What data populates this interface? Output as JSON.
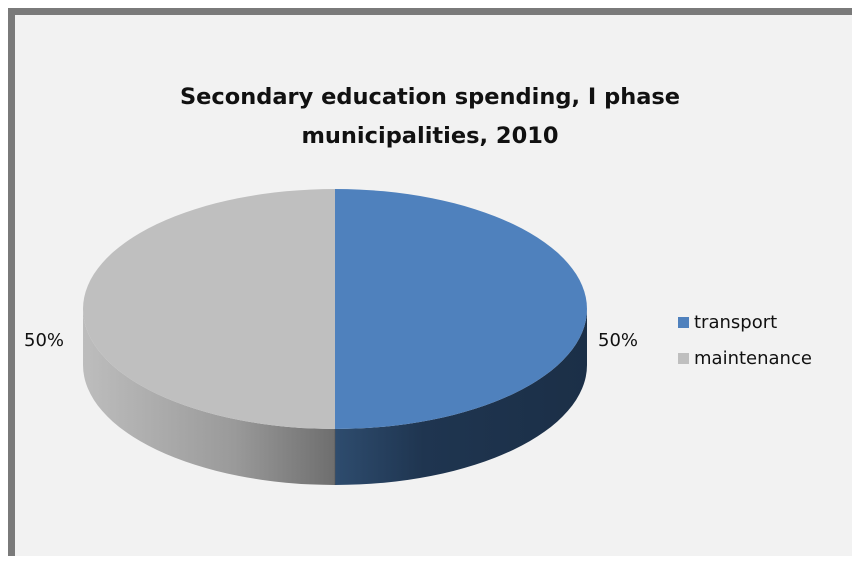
{
  "chart_data": {
    "type": "pie",
    "title": "Secondary education spending, I phase municipalities, 2010",
    "slices": [
      {
        "name": "transport",
        "value": 50,
        "label": "50%",
        "color": "#4f81bd"
      },
      {
        "name": "maintenance",
        "value": 50,
        "label": "50%",
        "color": "#bfbfbf"
      }
    ],
    "legend": "right",
    "three_d": true
  }
}
